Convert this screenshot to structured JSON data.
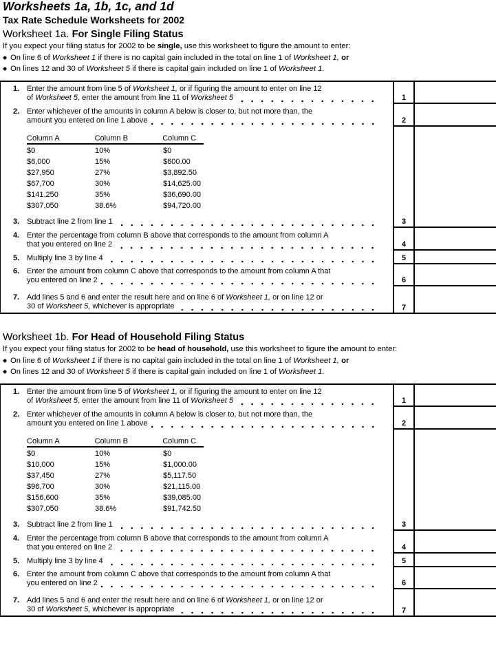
{
  "title": "Worksheets 1a, 1b, 1c, and 1d",
  "subtitle": "Tax Rate Schedule Worksheets for 2002",
  "worksheets": [
    {
      "prefix": "Worksheet 1a.",
      "name": "For Single Filing Status",
      "intro": [
        {
          "t": "If you expect your filing status for 2002 to be "
        },
        {
          "t": "single,",
          "s": "b"
        },
        {
          "t": " use this worksheet to figure the amount to enter:"
        }
      ],
      "bullets": [
        [
          {
            "t": "On line 6 of "
          },
          {
            "t": "Worksheet 1",
            "s": "i"
          },
          {
            "t": " if there is no capital gain included in the total on line 1 of "
          },
          {
            "t": "Worksheet 1,",
            "s": "i"
          },
          {
            "t": " "
          },
          {
            "t": "or",
            "s": "b"
          }
        ],
        [
          {
            "t": "On lines 12 and 30 of "
          },
          {
            "t": "Worksheet 5",
            "s": "i"
          },
          {
            "t": " if there is capital gain included on line 1 of "
          },
          {
            "t": "Worksheet 1",
            "s": "i"
          },
          {
            "t": "."
          }
        ]
      ],
      "lines": [
        {
          "num": "1",
          "label": "1.",
          "text": [
            [
              {
                "t": "Enter the amount from line 5 of "
              },
              {
                "t": "Worksheet 1,",
                "s": "i"
              },
              {
                "t": " or if figuring the amount to enter on line 12"
              }
            ],
            [
              {
                "t": "of "
              },
              {
                "t": "Worksheet 5,",
                "s": "i"
              },
              {
                "t": " enter the amount from line 11 of "
              },
              {
                "t": "Worksheet 5",
                "s": "i"
              }
            ]
          ]
        },
        {
          "num": "2",
          "label": "2.",
          "text": [
            [
              {
                "t": "Enter whichever of the amounts in column A below is closer to, but not more than, the"
              }
            ],
            [
              {
                "t": "amount you entered on line 1 above"
              }
            ]
          ]
        },
        {
          "num": "3",
          "label": "3.",
          "text": [
            [
              {
                "t": "Subtract line 2 from line 1"
              }
            ]
          ],
          "has_table": true
        },
        {
          "num": "4",
          "label": "4.",
          "text": [
            [
              {
                "t": "Enter the percentage from column B above that corresponds to the amount from column A"
              }
            ],
            [
              {
                "t": "that you entered on line 2"
              }
            ]
          ]
        },
        {
          "num": "5",
          "label": "5.",
          "text": [
            [
              {
                "t": "Multiply line 3 by line 4"
              }
            ]
          ]
        },
        {
          "num": "6",
          "label": "6.",
          "text": [
            [
              {
                "t": "Enter the amount from column C above that corresponds to the amount from column A that"
              }
            ],
            [
              {
                "t": "you entered on line 2"
              }
            ]
          ]
        },
        {
          "num": "7",
          "label": "7.",
          "text": [
            [
              {
                "t": "Add lines 5 and 6 and enter the result here and on line 6 of "
              },
              {
                "t": "Worksheet 1,",
                "s": "i"
              },
              {
                "t": " or on line 12 or"
              }
            ],
            [
              {
                "t": "30 of "
              },
              {
                "t": "Worksheet 5,",
                "s": "i"
              },
              {
                "t": " whichever is appropriate"
              }
            ]
          ]
        }
      ],
      "rate_table": {
        "headers": [
          "Column A",
          "Column B",
          "Column C"
        ],
        "rows": [
          [
            "$0",
            "10%",
            "$0"
          ],
          [
            "$6,000",
            "15%",
            "$600.00"
          ],
          [
            "$27,950",
            "27%",
            "$3,892.50"
          ],
          [
            "$67,700",
            "30%",
            "$14,625.00"
          ],
          [
            "$141,250",
            "35%",
            "$36,690.00"
          ],
          [
            "$307,050",
            "38.6%",
            "$94,720.00"
          ]
        ]
      }
    },
    {
      "prefix": "Worksheet 1b.",
      "name": "For Head of Household Filing Status",
      "intro": [
        {
          "t": "If you expect your filing status for 2002 to be "
        },
        {
          "t": "head of household,",
          "s": "b"
        },
        {
          "t": " use this worksheet to figure the amount to enter:"
        }
      ],
      "bullets": [
        [
          {
            "t": "On line 6 of "
          },
          {
            "t": "Worksheet 1",
            "s": "i"
          },
          {
            "t": " if there is no capital gain included in the total on line 1 of "
          },
          {
            "t": "Worksheet 1,",
            "s": "i"
          },
          {
            "t": " "
          },
          {
            "t": "or",
            "s": "b"
          }
        ],
        [
          {
            "t": "On lines 12 and 30 of "
          },
          {
            "t": "Worksheet 5",
            "s": "i"
          },
          {
            "t": " if there is capital gain included on line 1 of "
          },
          {
            "t": "Worksheet 1",
            "s": "i"
          },
          {
            "t": "."
          }
        ]
      ],
      "lines": [
        {
          "num": "1",
          "label": "1.",
          "text": [
            [
              {
                "t": "Enter the amount from line 5 of "
              },
              {
                "t": "Worksheet 1,",
                "s": "i"
              },
              {
                "t": " or if figuring the amount to enter on line 12"
              }
            ],
            [
              {
                "t": "of "
              },
              {
                "t": "Worksheet 5,",
                "s": "i"
              },
              {
                "t": " enter the amount from line 11 of "
              },
              {
                "t": "Worksheet 5",
                "s": "i"
              }
            ]
          ]
        },
        {
          "num": "2",
          "label": "2.",
          "text": [
            [
              {
                "t": "Enter whichever of the amounts in column A below is closer to, but not more than, the"
              }
            ],
            [
              {
                "t": "amount you entered on line 1 above"
              }
            ]
          ]
        },
        {
          "num": "3",
          "label": "3.",
          "text": [
            [
              {
                "t": "Subtract line 2 from line 1"
              }
            ]
          ],
          "has_table": true
        },
        {
          "num": "4",
          "label": "4.",
          "text": [
            [
              {
                "t": "Enter the percentage from column B above that corresponds to the amount from column A"
              }
            ],
            [
              {
                "t": "that you entered on line 2"
              }
            ]
          ]
        },
        {
          "num": "5",
          "label": "5.",
          "text": [
            [
              {
                "t": "Multiply line 3 by line 4"
              }
            ]
          ]
        },
        {
          "num": "6",
          "label": "6.",
          "text": [
            [
              {
                "t": "Enter the amount from column C above that corresponds to the amount from column A that"
              }
            ],
            [
              {
                "t": "you entered on line 2"
              }
            ]
          ]
        },
        {
          "num": "7",
          "label": "7.",
          "text": [
            [
              {
                "t": "Add lines 5 and 6 and enter the result here and on line 6 of "
              },
              {
                "t": "Worksheet 1,",
                "s": "i"
              },
              {
                "t": " or on line 12 or"
              }
            ],
            [
              {
                "t": "30 of "
              },
              {
                "t": "Worksheet 5,",
                "s": "i"
              },
              {
                "t": " whichever is appropriate"
              }
            ]
          ]
        }
      ],
      "rate_table": {
        "headers": [
          "Column A",
          "Column B",
          "Column C"
        ],
        "rows": [
          [
            "$0",
            "10%",
            "$0"
          ],
          [
            "$10,000",
            "15%",
            "$1,000.00"
          ],
          [
            "$37,450",
            "27%",
            "$5,117.50"
          ],
          [
            "$96,700",
            "30%",
            "$21,115.00"
          ],
          [
            "$156,600",
            "35%",
            "$39,085.00"
          ],
          [
            "$307,050",
            "38.6%",
            "$91,742.50"
          ]
        ]
      }
    }
  ]
}
